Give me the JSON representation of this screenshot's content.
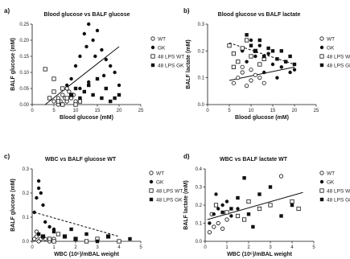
{
  "chart_data": [
    {
      "panel_label": "a)",
      "type": "scatter",
      "title": "Blood glucose vs BALF glucose",
      "xlabel": "Blood glucose (mM)",
      "ylabel": "BALF glucose (mM)",
      "xlim": [
        0,
        25
      ],
      "ylim": [
        0,
        0.25
      ],
      "xticks": [
        "0",
        "5",
        "10",
        "15",
        "20",
        "25"
      ],
      "yticks": [
        "0.00",
        "0.05",
        "0.10",
        "0.15",
        "0.20",
        "0.25"
      ],
      "legend_position": "right",
      "series": [
        {
          "name": "WT",
          "marker": "open-circle",
          "points": [
            [
              5,
              0.01
            ],
            [
              6,
              0.02
            ],
            [
              6.5,
              0.01
            ],
            [
              7,
              0.03
            ],
            [
              7.5,
              0.02
            ],
            [
              8,
              0.01
            ],
            [
              8.5,
              0.04
            ],
            [
              9,
              0.02
            ],
            [
              9.5,
              0.03
            ],
            [
              10,
              0.01
            ],
            [
              6,
              0.0
            ],
            [
              7,
              0.0
            ],
            [
              8,
              0.05
            ]
          ]
        },
        {
          "name": "GK",
          "marker": "filled-circle",
          "points": [
            [
              8,
              0.06
            ],
            [
              9,
              0.08
            ],
            [
              10,
              0.12
            ],
            [
              11,
              0.15
            ],
            [
              12,
              0.22
            ],
            [
              12.5,
              0.18
            ],
            [
              13,
              0.25
            ],
            [
              14,
              0.2
            ],
            [
              14.5,
              0.15
            ],
            [
              15,
              0.23
            ],
            [
              16,
              0.17
            ],
            [
              16.5,
              0.09
            ],
            [
              17,
              0.14
            ],
            [
              18,
              0.12
            ],
            [
              19,
              0.1
            ],
            [
              20,
              0.06
            ],
            [
              11,
              0.05
            ],
            [
              13,
              0.07
            ]
          ]
        },
        {
          "name": "48 LPS WT",
          "marker": "open-square",
          "points": [
            [
              3,
              0.11
            ],
            [
              4,
              0.02
            ],
            [
              5,
              0.08
            ],
            [
              6,
              0.01
            ],
            [
              7,
              0.0
            ],
            [
              8,
              0.02
            ],
            [
              9,
              0.03
            ],
            [
              10,
              0.0
            ],
            [
              11,
              0.01
            ],
            [
              5,
              0.04
            ],
            [
              7,
              0.05
            ]
          ]
        },
        {
          "name": "48 LPS GK",
          "marker": "filled-square",
          "points": [
            [
              9,
              0.03
            ],
            [
              10,
              0.05
            ],
            [
              11,
              0.02
            ],
            [
              12,
              0.04
            ],
            [
              13,
              0.06
            ],
            [
              14,
              0.03
            ],
            [
              15,
              0.08
            ],
            [
              16,
              0.02
            ],
            [
              17,
              0.05
            ],
            [
              18,
              0.01
            ],
            [
              19,
              0.02
            ],
            [
              20,
              0.03
            ]
          ]
        }
      ],
      "regression_lines": [
        {
          "style": "solid",
          "from": [
            3,
            0.0
          ],
          "to": [
            20,
            0.18
          ]
        }
      ]
    },
    {
      "panel_label": "b)",
      "type": "scatter",
      "title": "Blood glucose vs BALF lactate",
      "xlabel": "Blood glucose (mM)",
      "ylabel": "BALF lactate (mM)",
      "xlim": [
        0,
        25
      ],
      "ylim": [
        0,
        0.3
      ],
      "xticks": [
        "0",
        "5",
        "10",
        "15",
        "20",
        "25"
      ],
      "yticks": [
        "0.0",
        "0.1",
        "0.2",
        "0.3"
      ],
      "legend_position": "right",
      "series": [
        {
          "name": "WT",
          "marker": "open-circle",
          "points": [
            [
              6,
              0.08
            ],
            [
              7,
              0.1
            ],
            [
              8,
              0.12
            ],
            [
              9,
              0.07
            ],
            [
              10,
              0.09
            ],
            [
              11,
              0.11
            ],
            [
              12,
              0.1
            ],
            [
              13,
              0.08
            ],
            [
              8,
              0.14
            ],
            [
              10,
              0.13
            ]
          ]
        },
        {
          "name": "GK",
          "marker": "filled-circle",
          "points": [
            [
              8,
              0.2
            ],
            [
              9,
              0.16
            ],
            [
              10,
              0.24
            ],
            [
              11,
              0.18
            ],
            [
              12,
              0.22
            ],
            [
              13,
              0.12
            ],
            [
              14,
              0.19
            ],
            [
              15,
              0.15
            ],
            [
              16,
              0.1
            ],
            [
              17,
              0.14
            ],
            [
              18,
              0.16
            ],
            [
              19,
              0.12
            ],
            [
              20,
              0.13
            ]
          ]
        },
        {
          "name": "48 LPS WT",
          "marker": "open-square",
          "points": [
            [
              5,
              0.22
            ],
            [
              6,
              0.19
            ],
            [
              7,
              0.16
            ],
            [
              8,
              0.21
            ],
            [
              9,
              0.24
            ],
            [
              10,
              0.18
            ],
            [
              11,
              0.2
            ],
            [
              12,
              0.15
            ],
            [
              13,
              0.17
            ],
            [
              6,
              0.14
            ]
          ]
        },
        {
          "name": "48 LPS GK",
          "marker": "filled-square",
          "points": [
            [
              9,
              0.26
            ],
            [
              10,
              0.22
            ],
            [
              11,
              0.2
            ],
            [
              12,
              0.24
            ],
            [
              13,
              0.18
            ],
            [
              14,
              0.21
            ],
            [
              15,
              0.2
            ],
            [
              16,
              0.17
            ],
            [
              17,
              0.2
            ],
            [
              18,
              0.16
            ],
            [
              19,
              0.18
            ],
            [
              20,
              0.15
            ]
          ]
        }
      ],
      "regression_lines": [
        {
          "style": "solid",
          "from": [
            5,
            0.09
          ],
          "to": [
            20,
            0.14
          ]
        },
        {
          "style": "dashed",
          "from": [
            5,
            0.23
          ],
          "to": [
            20,
            0.15
          ]
        }
      ]
    },
    {
      "panel_label": "c)",
      "type": "scatter",
      "title": "WBC vs BALF glucose WT",
      "xlabel": "WBC (10⁶)/mBAL weight",
      "ylabel": "BALF glucose (mM)",
      "xlim": [
        0,
        5
      ],
      "ylim": [
        0,
        0.3
      ],
      "xticks": [
        "0",
        "1",
        "2",
        "3",
        "4",
        "5"
      ],
      "yticks": [
        "0.0",
        "0.1",
        "0.2",
        "0.3"
      ],
      "legend_position": "right",
      "series": [
        {
          "name": "WT",
          "marker": "open-circle",
          "points": [
            [
              0.1,
              0.01
            ],
            [
              0.2,
              0.02
            ],
            [
              0.3,
              0.0
            ],
            [
              0.4,
              0.01
            ],
            [
              0.5,
              0.02
            ],
            [
              0.6,
              0.01
            ],
            [
              0.8,
              0.0
            ],
            [
              1.0,
              0.01
            ],
            [
              0.2,
              0.04
            ]
          ]
        },
        {
          "name": "GK",
          "marker": "filled-circle",
          "points": [
            [
              0.1,
              0.12
            ],
            [
              0.2,
              0.18
            ],
            [
              0.3,
              0.25
            ],
            [
              0.4,
              0.2
            ],
            [
              0.5,
              0.15
            ],
            [
              0.6,
              0.08
            ],
            [
              0.8,
              0.06
            ],
            [
              1.0,
              0.05
            ],
            [
              1.2,
              0.03
            ],
            [
              0.3,
              0.22
            ]
          ]
        },
        {
          "name": "48 LPS WT",
          "marker": "open-square",
          "points": [
            [
              0.5,
              0.02
            ],
            [
              0.8,
              0.01
            ],
            [
              1.0,
              0.0
            ],
            [
              1.5,
              0.02
            ],
            [
              2.0,
              0.01
            ],
            [
              2.5,
              0.0
            ],
            [
              3.0,
              0.01
            ],
            [
              3.5,
              0.02
            ],
            [
              4.0,
              0.0
            ],
            [
              1.2,
              0.03
            ]
          ]
        },
        {
          "name": "48 LPS GK",
          "marker": "filled-square",
          "points": [
            [
              0.3,
              0.03
            ],
            [
              0.5,
              0.02
            ],
            [
              1.0,
              0.04
            ],
            [
              1.5,
              0.02
            ],
            [
              2.0,
              0.01
            ],
            [
              2.5,
              0.03
            ],
            [
              3.0,
              0.0
            ],
            [
              3.5,
              0.02
            ],
            [
              4.5,
              0.01
            ],
            [
              1.8,
              0.05
            ]
          ]
        }
      ],
      "regression_lines": [
        {
          "style": "dashed",
          "from": [
            0.1,
            0.12
          ],
          "to": [
            4,
            0.02
          ]
        }
      ]
    },
    {
      "panel_label": "d)",
      "type": "scatter",
      "title": "WBC vs BALF lactate WT",
      "xlabel": "WBC (10⁶)/mBAL weight",
      "ylabel": "BALF lactate (mM)",
      "xlim": [
        0,
        5
      ],
      "ylim": [
        0,
        0.4
      ],
      "xticks": [
        "0",
        "1",
        "2",
        "3",
        "4",
        "5"
      ],
      "yticks": [
        "0.0",
        "0.1",
        "0.2",
        "0.3",
        "0.4"
      ],
      "legend_position": "right",
      "series": [
        {
          "name": "WT",
          "marker": "open-circle",
          "points": [
            [
              0.2,
              0.05
            ],
            [
              0.4,
              0.08
            ],
            [
              0.6,
              0.1
            ],
            [
              0.8,
              0.07
            ],
            [
              1.0,
              0.12
            ],
            [
              3.5,
              0.36
            ],
            [
              0.3,
              0.15
            ]
          ]
        },
        {
          "name": "GK",
          "marker": "filled-circle",
          "points": [
            [
              0.2,
              0.1
            ],
            [
              0.4,
              0.15
            ],
            [
              0.6,
              0.18
            ],
            [
              0.8,
              0.2
            ],
            [
              1.0,
              0.22
            ],
            [
              1.2,
              0.14
            ],
            [
              1.5,
              0.18
            ],
            [
              0.5,
              0.26
            ]
          ]
        },
        {
          "name": "48 LPS WT",
          "marker": "open-square",
          "points": [
            [
              0.5,
              0.2
            ],
            [
              1.0,
              0.16
            ],
            [
              1.5,
              0.14
            ],
            [
              2.0,
              0.22
            ],
            [
              2.5,
              0.18
            ],
            [
              3.0,
              0.2
            ],
            [
              4.0,
              0.22
            ],
            [
              4.3,
              0.18
            ],
            [
              1.8,
              0.12
            ]
          ]
        },
        {
          "name": "48 LPS GK",
          "marker": "filled-square",
          "points": [
            [
              0.8,
              0.16
            ],
            [
              1.2,
              0.18
            ],
            [
              1.5,
              0.24
            ],
            [
              2.0,
              0.15
            ],
            [
              2.5,
              0.26
            ],
            [
              3.0,
              0.3
            ],
            [
              3.5,
              0.14
            ],
            [
              4.0,
              0.2
            ],
            [
              1.8,
              0.35
            ],
            [
              2.2,
              0.08
            ]
          ]
        }
      ],
      "regression_lines": [
        {
          "style": "solid",
          "from": [
            0.1,
            0.12
          ],
          "to": [
            4.5,
            0.27
          ]
        }
      ]
    }
  ]
}
